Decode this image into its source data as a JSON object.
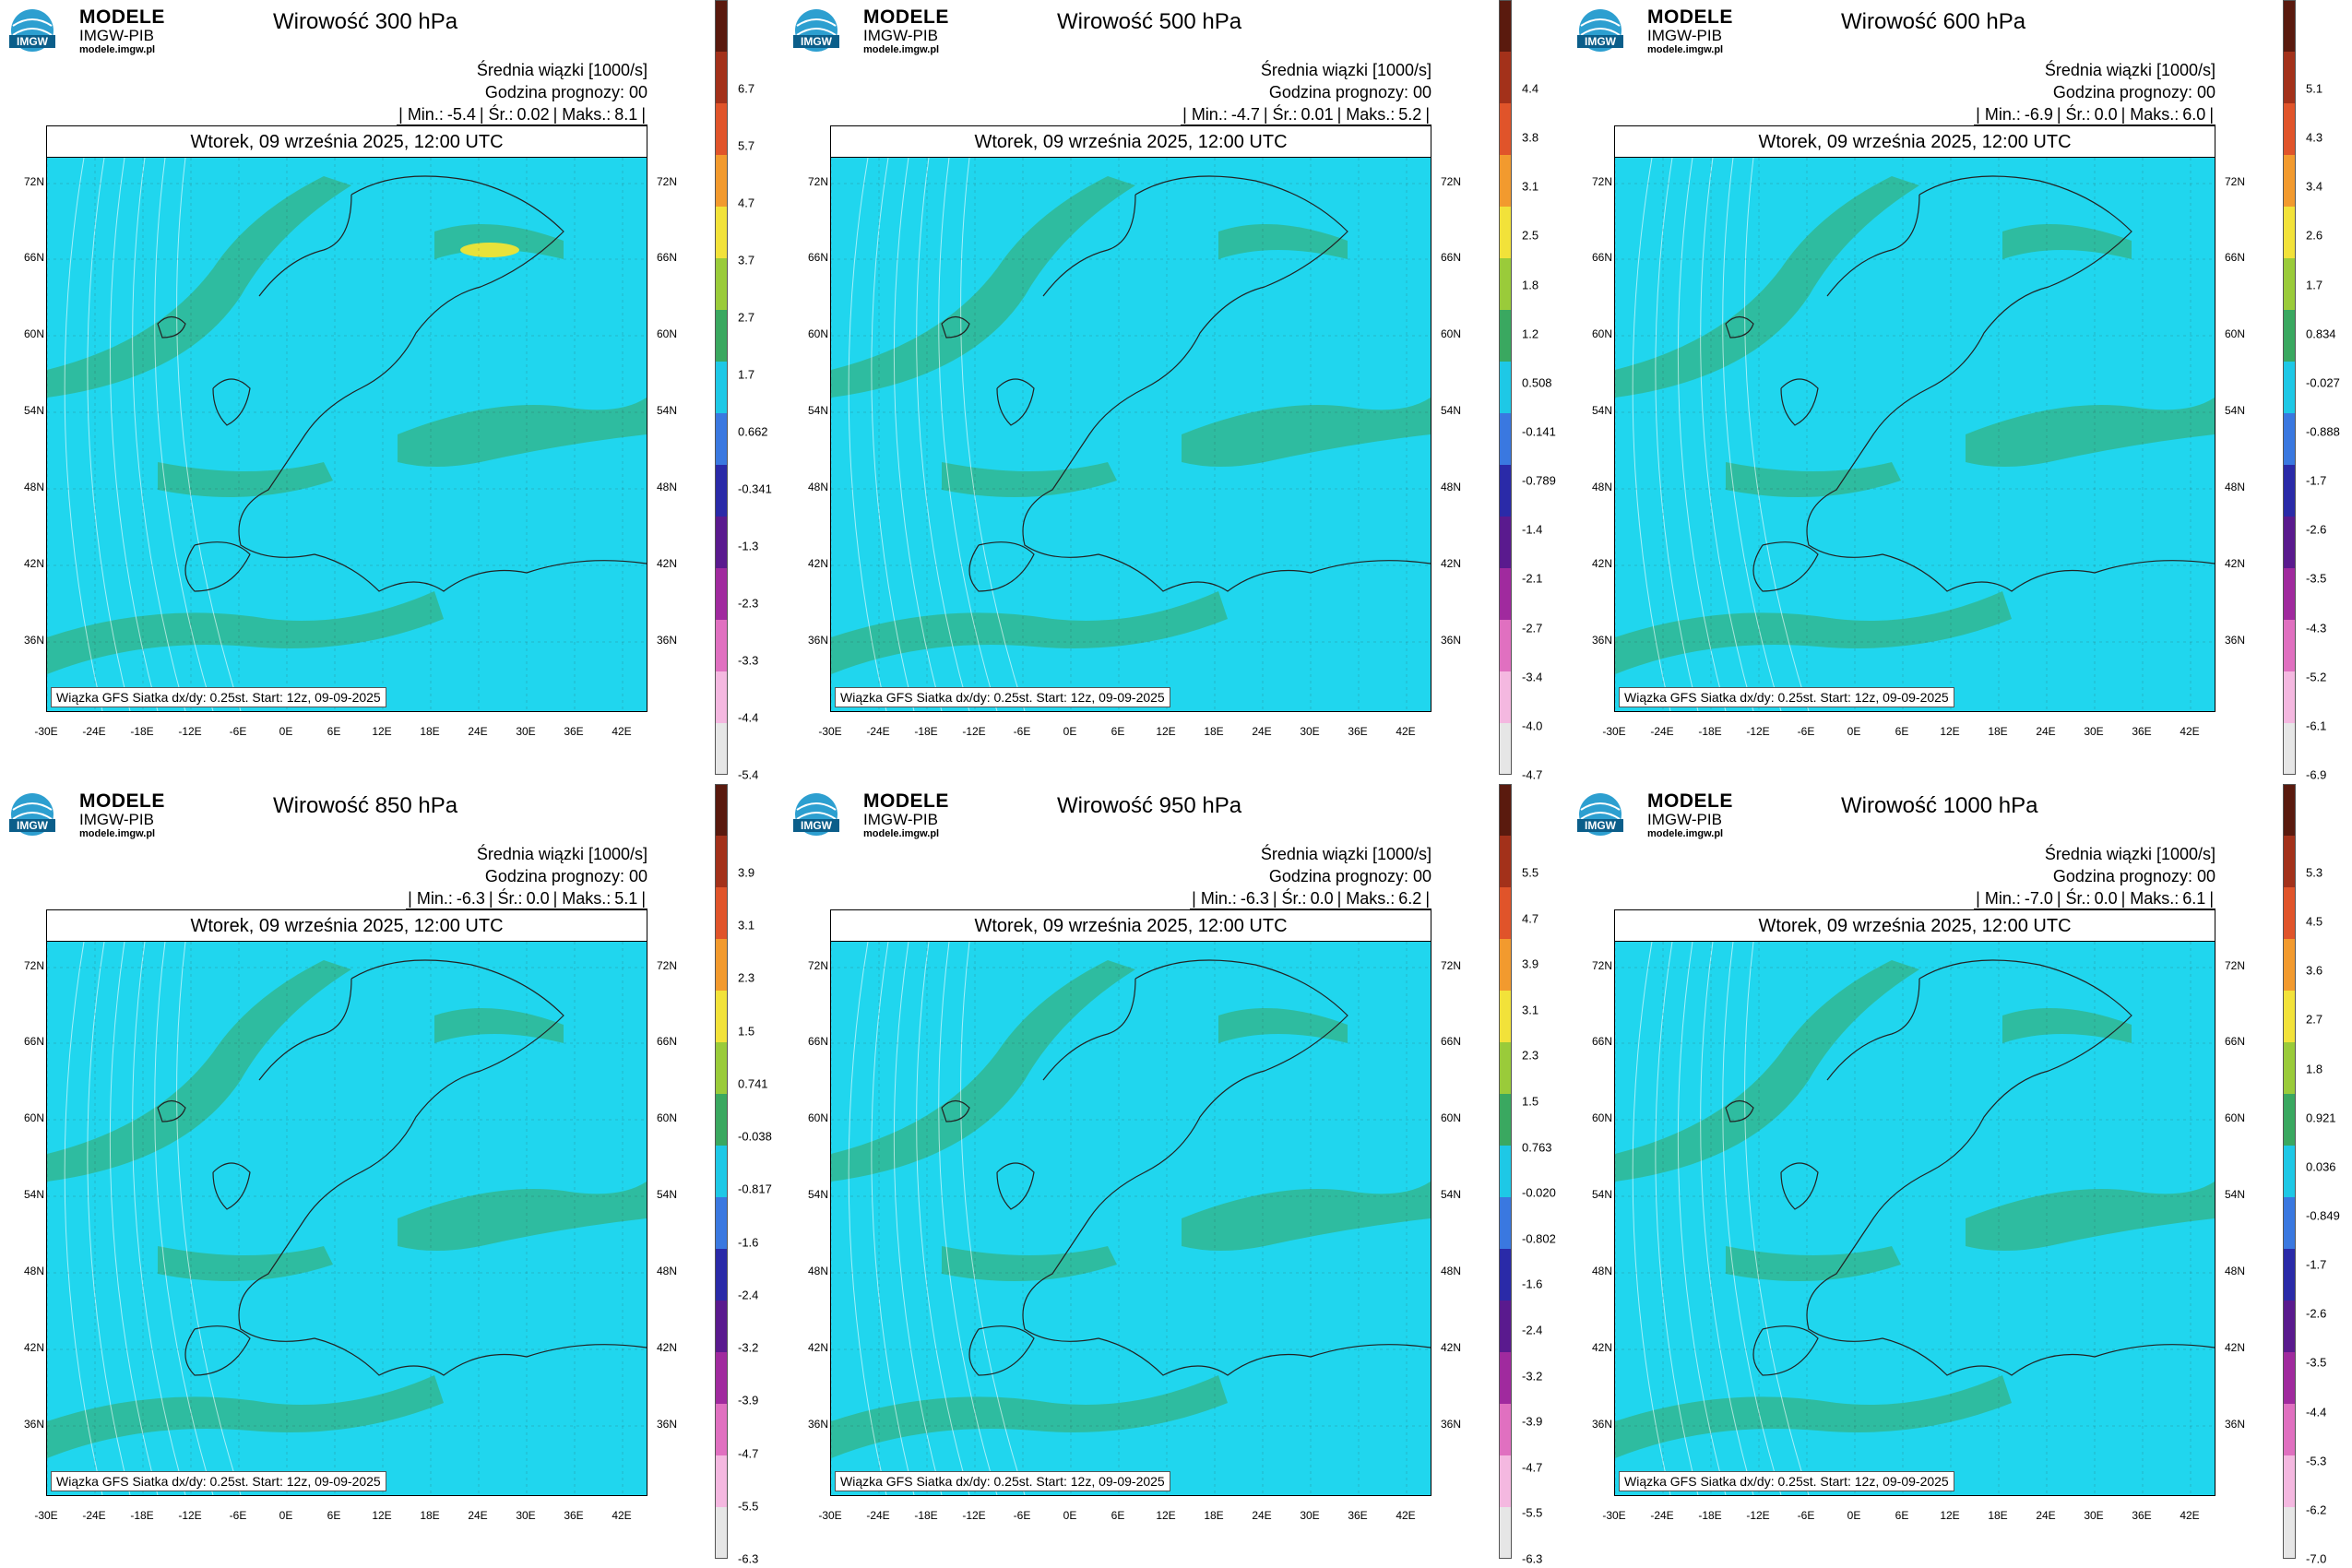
{
  "brand": {
    "name": "MODELE",
    "org": "IMGW-PIB",
    "url": "modele.imgw.pl",
    "logo_text": "IMGW"
  },
  "date_line": "Wtorek, 09 września 2025, 12:00 UTC",
  "subtitle": "Średnia wiązki [1000/s]",
  "forecast_hour": "Godzina prognozy: 00",
  "footer": "Wiązka GFS Siatka dx/dy: 0.25st. Start: 12z, 09-09-2025",
  "lat_labels": [
    "72N",
    "66N",
    "60N",
    "54N",
    "48N",
    "42N",
    "36N"
  ],
  "lon_labels": [
    "-30E",
    "-24E",
    "-18E",
    "-12E",
    "-6E",
    "0E",
    "6E",
    "12E",
    "18E",
    "24E",
    "30E",
    "36E",
    "42E"
  ],
  "panels": [
    {
      "title": "Wirowość 300 hPa",
      "min": "-5.4",
      "avg": "0.02",
      "max": "8.1",
      "ticks": [
        "6.7",
        "5.7",
        "4.7",
        "3.7",
        "2.7",
        "1.7",
        "0.662",
        "-0.341",
        "-1.3",
        "-2.3",
        "-3.3",
        "-4.4",
        "-5.4"
      ]
    },
    {
      "title": "Wirowość 500 hPa",
      "min": "-4.7",
      "avg": "0.01",
      "max": "5.2",
      "ticks": [
        "4.4",
        "3.8",
        "3.1",
        "2.5",
        "1.8",
        "1.2",
        "0.508",
        "-0.141",
        "-0.789",
        "-1.4",
        "-2.1",
        "-2.7",
        "-3.4",
        "-4.0",
        "-4.7"
      ]
    },
    {
      "title": "Wirowość 600 hPa",
      "min": "-6.9",
      "avg": "0.0",
      "max": "6.0",
      "ticks": [
        "5.1",
        "4.3",
        "3.4",
        "2.6",
        "1.7",
        "0.834",
        "-0.027",
        "-0.888",
        "-1.7",
        "-2.6",
        "-3.5",
        "-4.3",
        "-5.2",
        "-6.1",
        "-6.9"
      ]
    },
    {
      "title": "Wirowość 850 hPa",
      "min": "-6.3",
      "avg": "0.0",
      "max": "5.1",
      "ticks": [
        "3.9",
        "3.1",
        "2.3",
        "1.5",
        "0.741",
        "-0.038",
        "-0.817",
        "-1.6",
        "-2.4",
        "-3.2",
        "-3.9",
        "-4.7",
        "-5.5",
        "-6.3"
      ]
    },
    {
      "title": "Wirowość 950 hPa",
      "min": "-6.3",
      "avg": "0.0",
      "max": "6.2",
      "ticks": [
        "5.5",
        "4.7",
        "3.9",
        "3.1",
        "2.3",
        "1.5",
        "0.763",
        "-0.020",
        "-0.802",
        "-1.6",
        "-2.4",
        "-3.2",
        "-3.9",
        "-4.7",
        "-5.5",
        "-6.3"
      ]
    },
    {
      "title": "Wirowość 1000 hPa",
      "min": "-7.0",
      "avg": "0.0",
      "max": "6.1",
      "ticks": [
        "5.3",
        "4.5",
        "3.6",
        "2.7",
        "1.8",
        "0.921",
        "0.036",
        "-0.849",
        "-1.7",
        "-2.6",
        "-3.5",
        "-4.4",
        "-5.3",
        "-6.2",
        "-7.0"
      ]
    }
  ],
  "colors": {
    "field": "#20d6ee",
    "positive": "#3aa860",
    "strong": "#e8e23a",
    "land_line": "#222222"
  }
}
